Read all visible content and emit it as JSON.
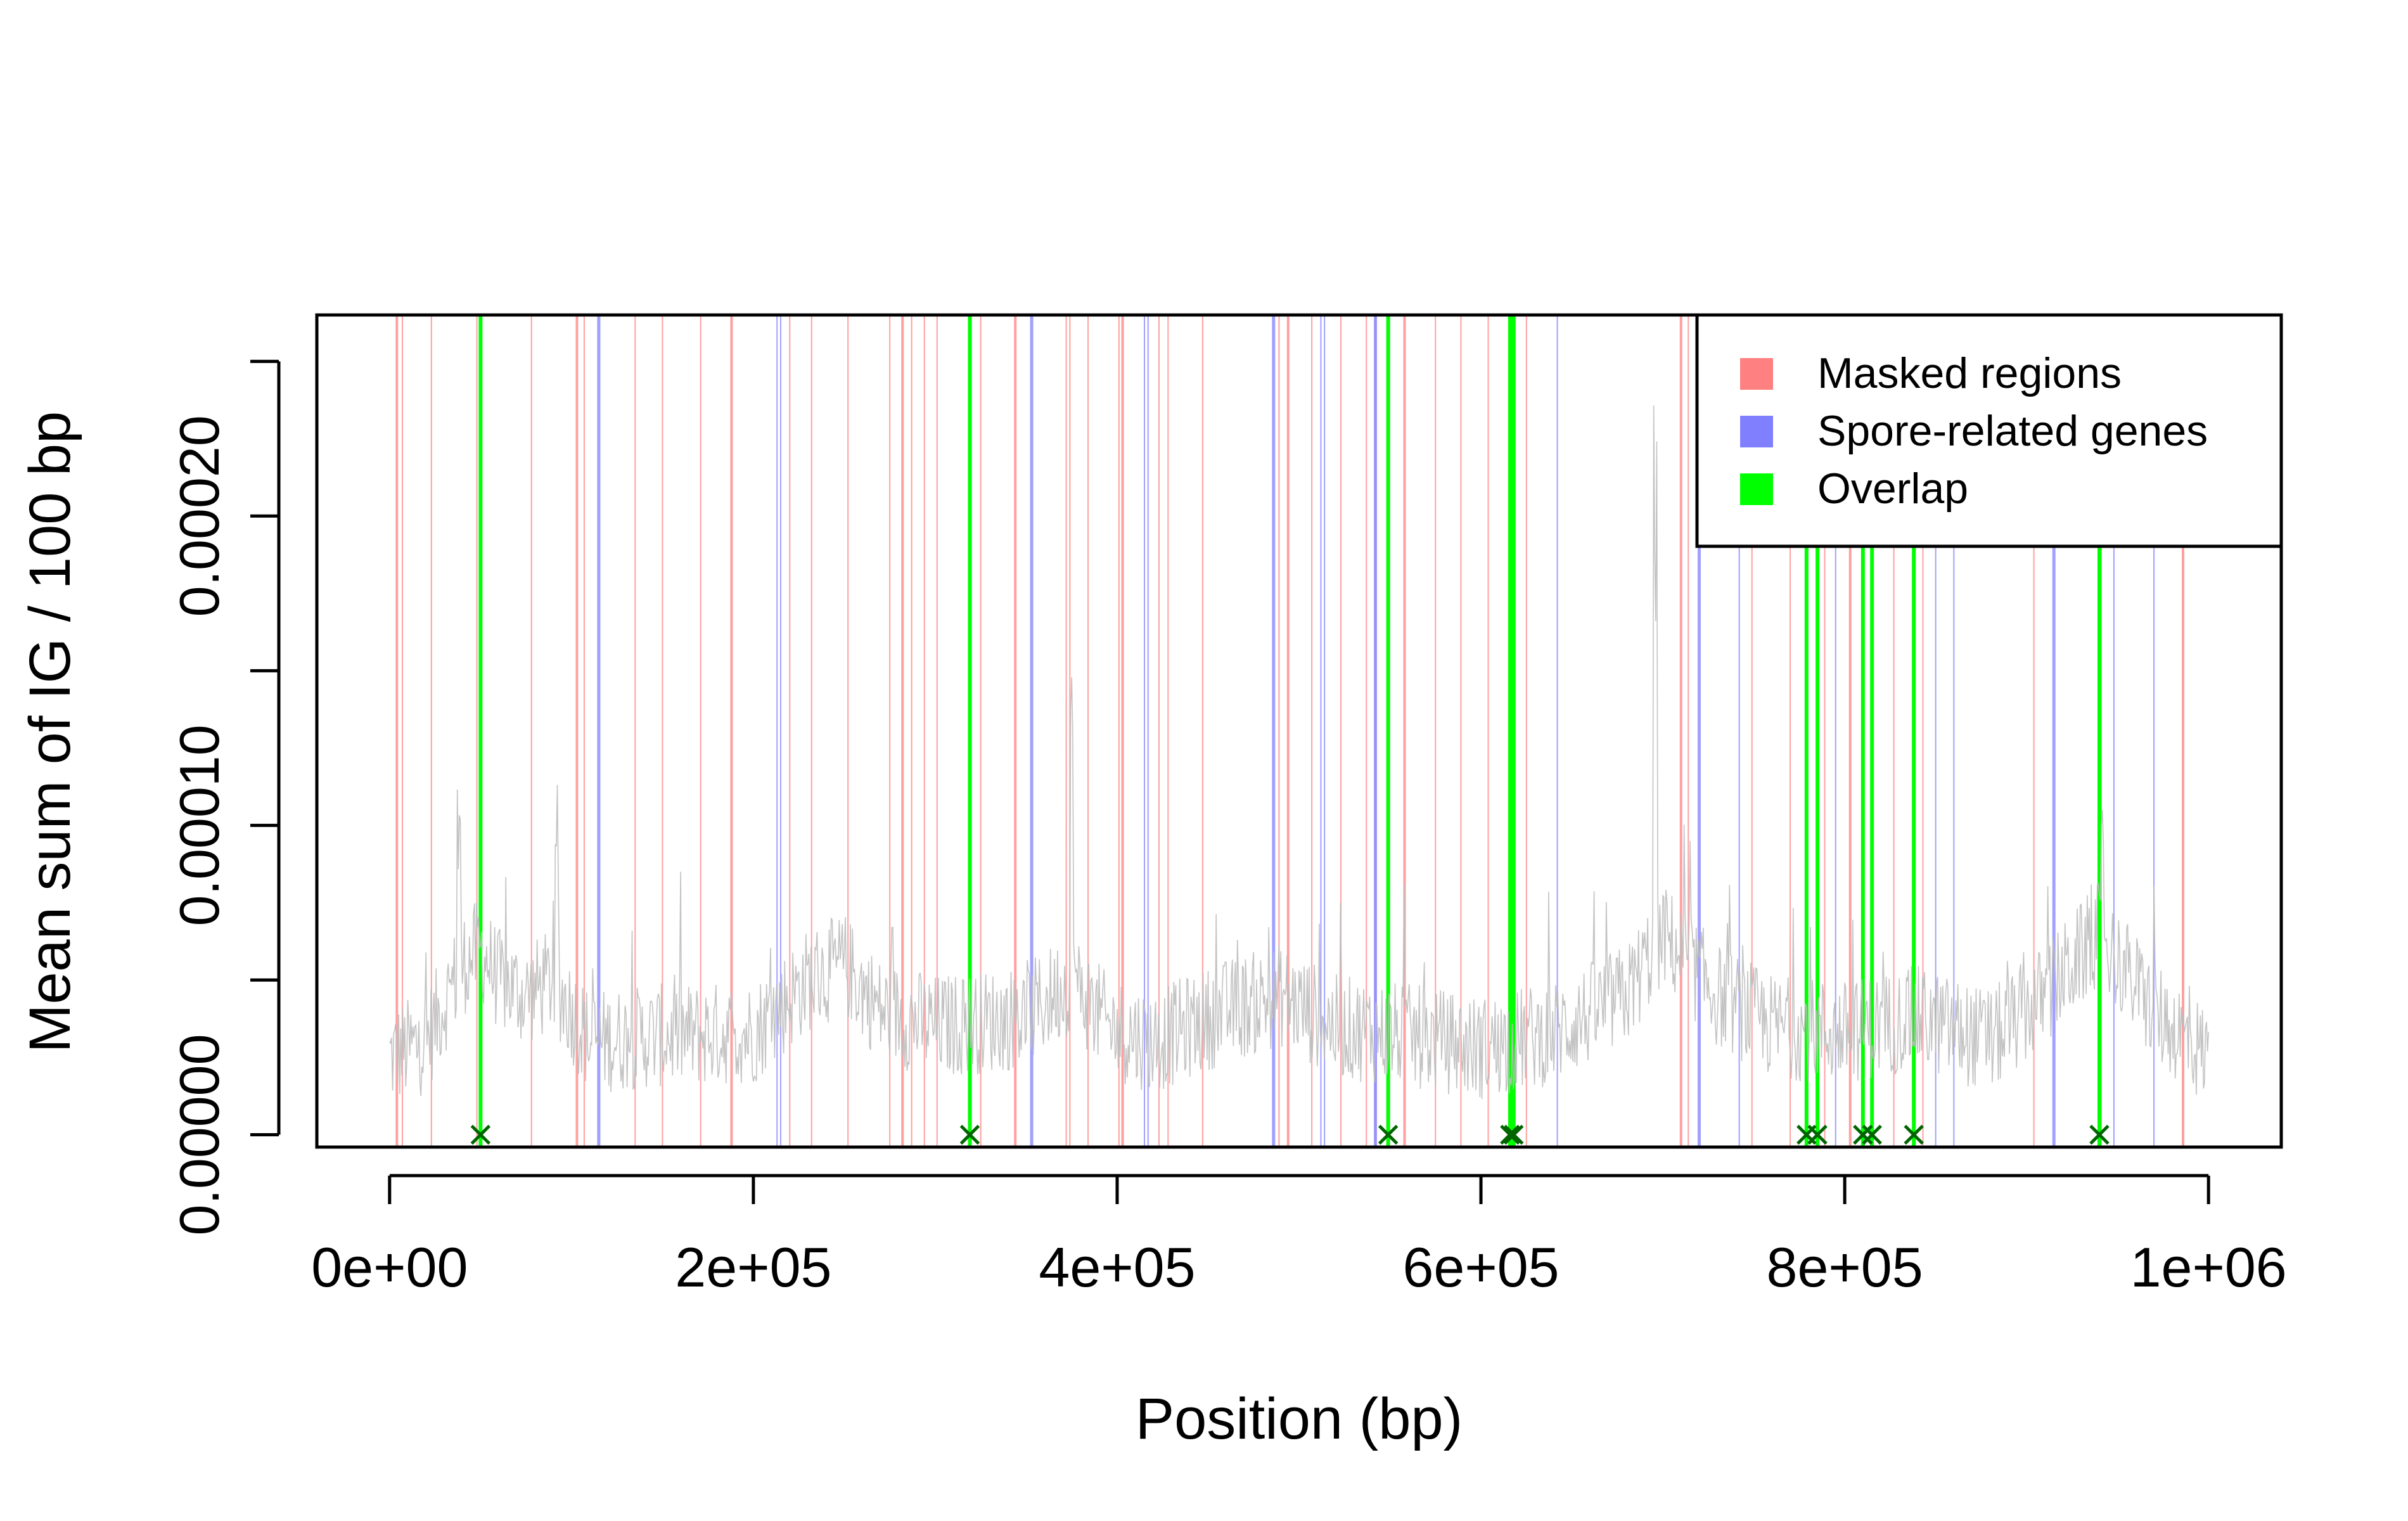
{
  "chart_data": {
    "type": "line",
    "title": "",
    "xlabel": "Position (bp)",
    "ylabel": "Mean sum of IG / 100 bp",
    "xlim": [
      -40000,
      1040000
    ],
    "ylim": [
      -4e-06,
      0.000265
    ],
    "x_ticks": [
      0,
      200000,
      400000,
      600000,
      800000,
      1000000
    ],
    "x_tick_labels": [
      "0e+00",
      "2e+05",
      "4e+05",
      "6e+05",
      "8e+05",
      "1e+06"
    ],
    "y_ticks": [
      0,
      5e-05,
      0.0001,
      0.00015,
      0.0002,
      0.00025
    ],
    "y_tick_labels": [
      "0.00000",
      "",
      "0.00010",
      "",
      "0.00020",
      ""
    ],
    "legend": {
      "position": "top-right",
      "entries": [
        {
          "label": "Masked regions",
          "color": "#ff8080"
        },
        {
          "label": "Spore-related genes",
          "color": "#8080ff"
        },
        {
          "label": "Overlap",
          "color": "#00ff00"
        }
      ]
    },
    "colors": {
      "signal": "#bdbdbd",
      "masked": "#ff8080",
      "spore": "#8080ff",
      "overlap": "#00ff00",
      "marker": "#006400"
    },
    "masked_regions": [
      4000,
      7000,
      23000,
      48000,
      78000,
      103000,
      107000,
      135000,
      150000,
      171000,
      188000,
      220000,
      232000,
      252000,
      275000,
      282000,
      287000,
      294000,
      301000,
      325000,
      344000,
      372000,
      374000,
      384000,
      401000,
      403000,
      423000,
      428000,
      447000,
      489000,
      494000,
      507000,
      523000,
      537000,
      542000,
      558000,
      575000,
      589000,
      604000,
      625000,
      710000,
      714000,
      749000,
      770000,
      789000,
      803000,
      827000,
      843000,
      904000,
      941000,
      986000
    ],
    "spore_genes": [
      115000,
      213000,
      215000,
      353000,
      415000,
      417000,
      486000,
      512000,
      514000,
      542000,
      616000,
      642000,
      720000,
      742000,
      795000,
      810000,
      850000,
      860000,
      915000,
      948000,
      970000
    ],
    "overlap": [
      50000,
      319000,
      549000,
      616000,
      618000,
      779000,
      785000,
      810000,
      815000,
      838000,
      940000
    ],
    "overlap_markers": [
      50000,
      319000,
      549000,
      616000,
      618000,
      779000,
      785000,
      810000,
      815000,
      838000,
      940000
    ],
    "signal_profile": {
      "x": [
        0,
        20000,
        40000,
        50000,
        60000,
        75000,
        90000,
        110000,
        150000,
        200000,
        230000,
        250000,
        270000,
        300000,
        350000,
        375000,
        395000,
        420000,
        460000,
        490000,
        520000,
        560000,
        600000,
        640000,
        680000,
        700000,
        730000,
        760000,
        800000,
        840000,
        880000,
        910000,
        940000,
        970000,
        1000000
      ],
      "y": [
        2.5e-05,
        3e-05,
        5.5e-05,
        6e-05,
        5e-05,
        4.5e-05,
        5e-05,
        3e-05,
        3.2e-05,
        3.3e-05,
        5e-05,
        5.5e-05,
        4e-05,
        3.5e-05,
        3.8e-05,
        5e-05,
        3.5e-05,
        3e-05,
        4e-05,
        4.5e-05,
        3.5e-05,
        3.2e-05,
        2.8e-05,
        3.3e-05,
        4.5e-05,
        6.5e-05,
        4.5e-05,
        3.5e-05,
        3.3e-05,
        3.8e-05,
        3e-05,
        4.5e-05,
        6.5e-05,
        4e-05,
        2.5e-05
      ]
    },
    "signal_peaks": [
      {
        "x": 38000,
        "y": 0.00013
      },
      {
        "x": 92000,
        "y": 0.000125
      },
      {
        "x": 375000,
        "y": 0.00017
      },
      {
        "x": 696000,
        "y": 0.00025
      },
      {
        "x": 942000,
        "y": 0.000115
      }
    ]
  }
}
